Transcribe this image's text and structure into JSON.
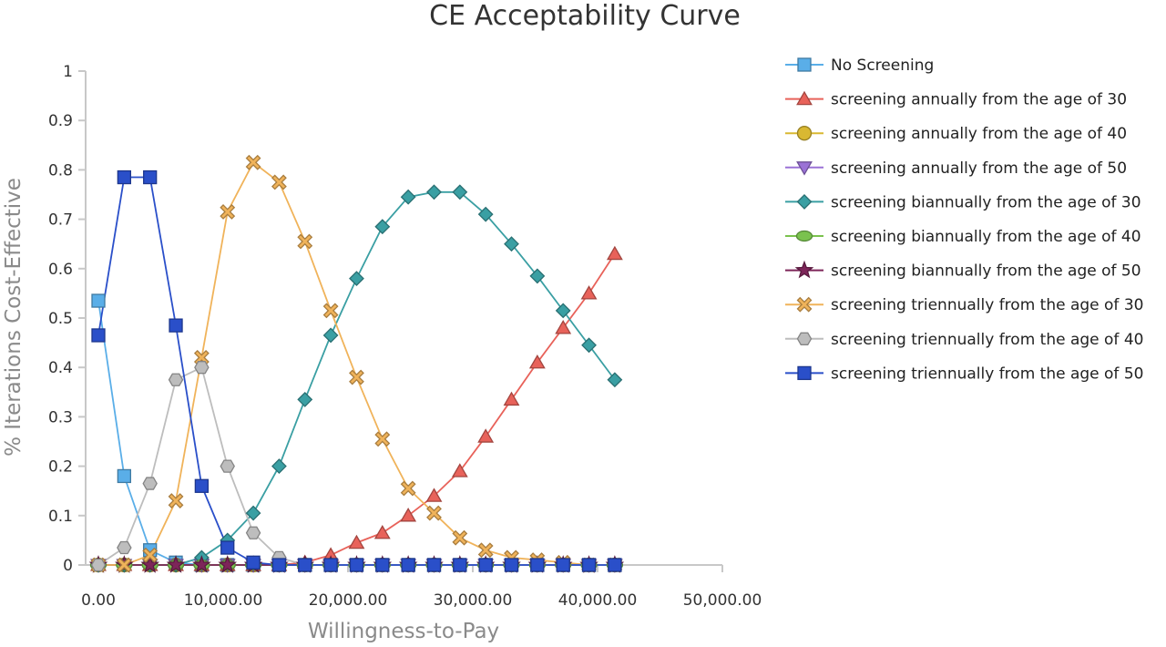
{
  "chart_data": {
    "type": "line",
    "title": "CE Acceptability Curve",
    "xlabel": "Willingness-to-Pay",
    "ylabel": "% Iterations Cost-Effective",
    "xlim": [
      0,
      50000
    ],
    "ylim": [
      0,
      1
    ],
    "x_ticks": [
      0,
      10000,
      20000,
      30000,
      40000,
      50000
    ],
    "x_tick_labels": [
      "0.00",
      "10,000.00",
      "20,000.00",
      "30,000.00",
      "40,000.00",
      "50,000.00"
    ],
    "y_ticks": [
      0,
      0.1,
      0.2,
      0.3,
      0.4,
      0.5,
      0.6,
      0.7,
      0.8,
      0.9,
      1
    ],
    "y_tick_labels": [
      "0",
      "0.1",
      "0.2",
      "0.3",
      "0.4",
      "0.5",
      "0.6",
      "0.7",
      "0.8",
      "0.9",
      "1"
    ],
    "grid": false,
    "legend_position": "right",
    "x": [
      0,
      2069,
      4138,
      6207,
      8276,
      10345,
      12414,
      14483,
      16552,
      18621,
      20690,
      22759,
      24828,
      26897,
      28966,
      31034,
      33103,
      35172,
      37241,
      39310,
      41379
    ],
    "series": [
      {
        "name": "No Screening",
        "color": "#5aaee8",
        "marker": "square",
        "values": [
          0.535,
          0.18,
          0.03,
          0.005,
          0,
          0,
          0,
          0,
          0,
          0,
          0,
          0,
          0,
          0,
          0,
          0,
          0,
          0,
          0,
          0,
          0
        ]
      },
      {
        "name": "screening annually from the age of 30",
        "color": "#e8625a",
        "marker": "triangle-up",
        "values": [
          0,
          0,
          0,
          0,
          0,
          0,
          0,
          0,
          0.005,
          0.02,
          0.045,
          0.065,
          0.1,
          0.14,
          0.19,
          0.26,
          0.335,
          0.41,
          0.48,
          0.55,
          0.63
        ]
      },
      {
        "name": "screening annually from the age of 40",
        "color": "#d9b832",
        "marker": "circle",
        "values": [
          0,
          0,
          0,
          0,
          0,
          0,
          0,
          0,
          0,
          0,
          0,
          0,
          0,
          0,
          0,
          0,
          0,
          0,
          0,
          0,
          0
        ]
      },
      {
        "name": "screening annually from the age of 50",
        "color": "#9b72d6",
        "marker": "triangle-down",
        "values": [
          0,
          0,
          0,
          0,
          0,
          0,
          0,
          0,
          0,
          0,
          0,
          0,
          0,
          0,
          0,
          0,
          0,
          0,
          0,
          0,
          0
        ]
      },
      {
        "name": "screening biannually from the age of 30",
        "color": "#3a9fa3",
        "marker": "diamond",
        "values": [
          0,
          0,
          0,
          0,
          0.015,
          0.05,
          0.105,
          0.2,
          0.335,
          0.465,
          0.58,
          0.685,
          0.745,
          0.755,
          0.755,
          0.71,
          0.65,
          0.585,
          0.515,
          0.445,
          0.375
        ]
      },
      {
        "name": "screening biannually from the age of 40",
        "color": "#7ac24e",
        "marker": "ellipse",
        "values": [
          0,
          0,
          0,
          0,
          0,
          0,
          0,
          0,
          0,
          0,
          0,
          0,
          0,
          0,
          0,
          0,
          0,
          0,
          0,
          0,
          0
        ]
      },
      {
        "name": "screening biannually from the age of 50",
        "color": "#7d2559",
        "marker": "star",
        "values": [
          0,
          0,
          0,
          0,
          0,
          0,
          0,
          0,
          0,
          0,
          0,
          0,
          0,
          0,
          0,
          0,
          0,
          0,
          0,
          0,
          0
        ]
      },
      {
        "name": "screening triennually from the age of 30",
        "color": "#f0b35a",
        "marker": "cross",
        "values": [
          0,
          0,
          0.02,
          0.13,
          0.42,
          0.715,
          0.815,
          0.775,
          0.655,
          0.515,
          0.38,
          0.255,
          0.155,
          0.105,
          0.055,
          0.03,
          0.015,
          0.01,
          0.005,
          0,
          0
        ]
      },
      {
        "name": "screening triennually from the age of 40",
        "color": "#bdbdbd",
        "marker": "hexagon",
        "values": [
          0,
          0.035,
          0.165,
          0.375,
          0.4,
          0.2,
          0.065,
          0.015,
          0,
          0,
          0,
          0,
          0,
          0,
          0,
          0,
          0,
          0,
          0,
          0,
          0
        ]
      },
      {
        "name": "screening triennually from the age of 50",
        "color": "#2a4fc9",
        "marker": "square",
        "values": [
          0.465,
          0.785,
          0.785,
          0.485,
          0.16,
          0.035,
          0.005,
          0,
          0,
          0,
          0,
          0,
          0,
          0,
          0,
          0,
          0,
          0,
          0,
          0,
          0
        ]
      }
    ]
  }
}
